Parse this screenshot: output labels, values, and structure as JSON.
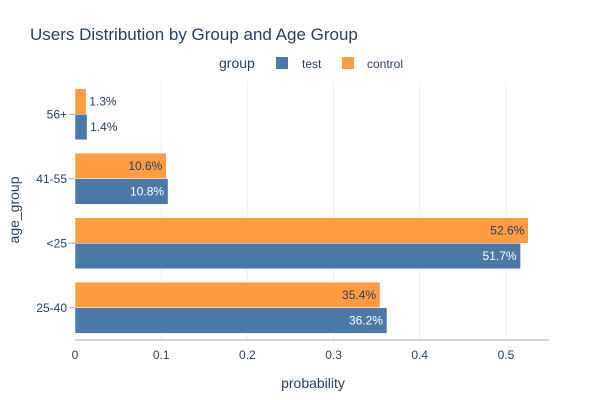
{
  "chart_data": {
    "type": "bar",
    "orientation": "horizontal",
    "title": "Users Distribution by Group and Age Group",
    "xlabel": "probability",
    "ylabel": "age_group",
    "legend_title": "group",
    "legend_position": "top",
    "xlim": [
      0,
      0.55
    ],
    "xticks": [
      0,
      0.1,
      0.2,
      0.3,
      0.4,
      0.5
    ],
    "xtick_labels": [
      "0",
      "0.1",
      "0.2",
      "0.3",
      "0.4",
      "0.5"
    ],
    "categories": [
      "56+",
      "41-55",
      "<25",
      "25-40"
    ],
    "grid": true,
    "series": [
      {
        "name": "test",
        "color": "#4c78a8",
        "values": [
          0.014,
          0.108,
          0.517,
          0.362
        ],
        "labels": [
          "1.4%",
          "10.8%",
          "51.7%",
          "36.2%"
        ]
      },
      {
        "name": "control",
        "color": "#fe9c43",
        "values": [
          0.013,
          0.106,
          0.526,
          0.354
        ],
        "labels": [
          "1.3%",
          "10.6%",
          "52.6%",
          "35.4%"
        ]
      }
    ]
  }
}
